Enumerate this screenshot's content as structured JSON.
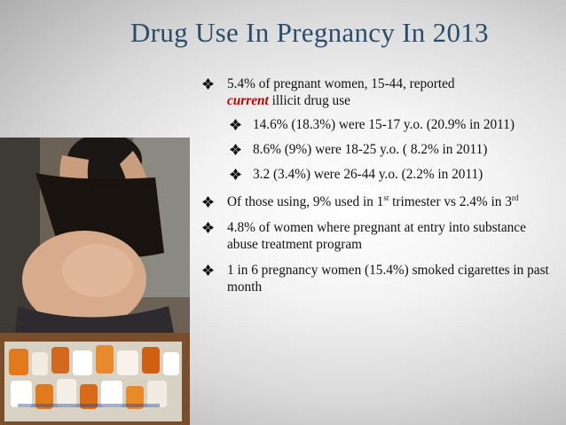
{
  "slide": {
    "title": "Drug Use In Pregnancy In 2013",
    "photo_icon": "pregnant-woman-with-pill-bottles-photo",
    "bullet_icon": "four-leaf-diamond-bullet",
    "accent_color": "#c00000",
    "title_color": "#2a4d6e"
  },
  "bullets": [
    {
      "pre": "5.4% of pregnant women, 15-44, reported",
      "em": "current",
      "post": " illicit drug use"
    },
    {
      "sub": [
        {
          "text": "14.6% (18.3%) were 15-17 y.o. (20.9% in 2011)"
        },
        {
          "text": "8.6% (9%) were 18-25 y.o. ( 8.2% in 2011)"
        },
        {
          "text": "3.2 (3.4%) were 26-44 y.o. (2.2% in 2011)"
        }
      ]
    },
    {
      "a": "Of those using, 9% used in 1",
      "sup1": "st",
      "b": " trimester vs 2.4% in 3",
      "sup2": "rd"
    },
    {
      "text": "4.8% of women where pregnant at entry into substance abuse treatment program"
    },
    {
      "text": "1 in 6 pregnancy women (15.4%) smoked cigarettes in past month"
    }
  ]
}
